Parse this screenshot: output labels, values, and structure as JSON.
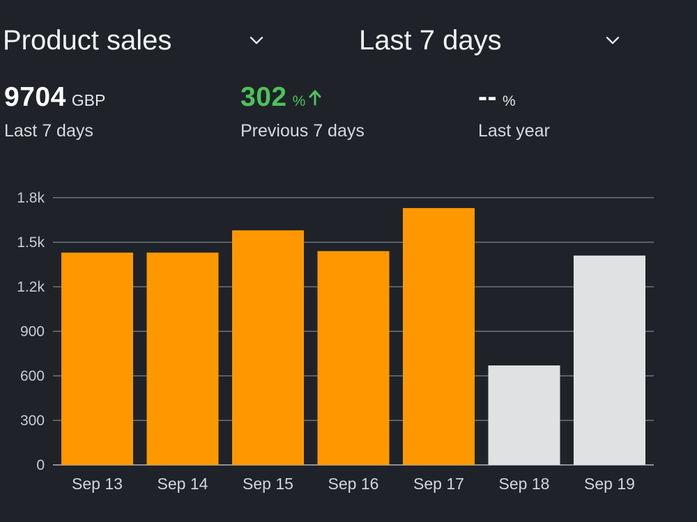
{
  "header": {
    "metric_dropdown": {
      "label": "Product sales",
      "icon": "chevron-down-icon"
    },
    "period_dropdown": {
      "label": "Last 7 days",
      "icon": "chevron-down-icon"
    }
  },
  "stats": {
    "total": {
      "value": "9704",
      "unit": "GBP",
      "caption": "Last 7 days"
    },
    "previous": {
      "value": "302",
      "unit": "%",
      "caption": "Previous 7 days",
      "trend_icon": "arrow-up-icon"
    },
    "last_year": {
      "value": "--",
      "unit": "%",
      "caption": "Last year"
    }
  },
  "colors": {
    "background": "#1f2329",
    "current_period_bar": "#ff9800",
    "projected_bar": "#e0e1e3",
    "positive": "#4cc35a"
  },
  "chart_data": {
    "type": "bar",
    "categories": [
      "Sep 13",
      "Sep 14",
      "Sep 15",
      "Sep 16",
      "Sep 17",
      "Sep 18",
      "Sep 19"
    ],
    "values": [
      1430,
      1430,
      1580,
      1440,
      1730,
      670,
      1410
    ],
    "bar_colors": [
      "#ff9800",
      "#ff9800",
      "#ff9800",
      "#ff9800",
      "#ff9800",
      "#e0e1e3",
      "#e0e1e3"
    ],
    "yticks": [
      0,
      300,
      600,
      900,
      1200,
      1500,
      1800
    ],
    "ytick_labels": [
      "0",
      "300",
      "600",
      "900",
      "1.2k",
      "1.5k",
      "1.8k"
    ],
    "ylim": [
      0,
      1800
    ],
    "grid": true,
    "title": "",
    "xlabel": "",
    "ylabel": ""
  }
}
